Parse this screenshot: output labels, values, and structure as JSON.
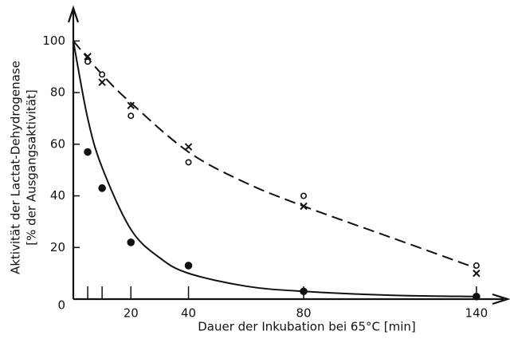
{
  "chart_data": {
    "type": "scatter",
    "ylabel": [
      "Aktivität der Lactat-Dehydrogenase",
      "[% der Ausgangsaktivität]"
    ],
    "xlabel": "Dauer der Inkubation bei 65°C [min]",
    "xlim": [
      0,
      150
    ],
    "ylim": [
      0,
      110
    ],
    "xticks": [
      20,
      40,
      80,
      140
    ],
    "xminorticks": [
      5,
      10
    ],
    "yticks": [
      0,
      20,
      40,
      60,
      80,
      100
    ],
    "series": [
      {
        "marker": "circle-open",
        "color": "#111",
        "x": [
          5,
          10,
          20,
          40,
          80,
          140
        ],
        "values": [
          92,
          87,
          71,
          53,
          40,
          13
        ]
      },
      {
        "marker": "cross",
        "color": "#111",
        "x": [
          5,
          10,
          20,
          40,
          80,
          140
        ],
        "values": [
          94,
          84,
          75,
          59,
          36,
          10
        ]
      },
      {
        "marker": "circle-filled",
        "color": "#111",
        "x": [
          5,
          10,
          20,
          40,
          80,
          140
        ],
        "values": [
          57,
          43,
          22,
          13,
          3,
          1
        ]
      }
    ],
    "fits": [
      {
        "style": "dashed",
        "x": [
          0,
          10,
          20,
          40,
          60,
          80,
          110,
          140
        ],
        "y": [
          100,
          87,
          76,
          57,
          45,
          36,
          24,
          12
        ]
      },
      {
        "style": "solid",
        "x": [
          0,
          5,
          10,
          20,
          30,
          40,
          60,
          80,
          110,
          140
        ],
        "y": [
          100,
          70,
          51,
          27,
          16,
          10,
          5,
          3,
          1.5,
          1
        ]
      }
    ]
  }
}
